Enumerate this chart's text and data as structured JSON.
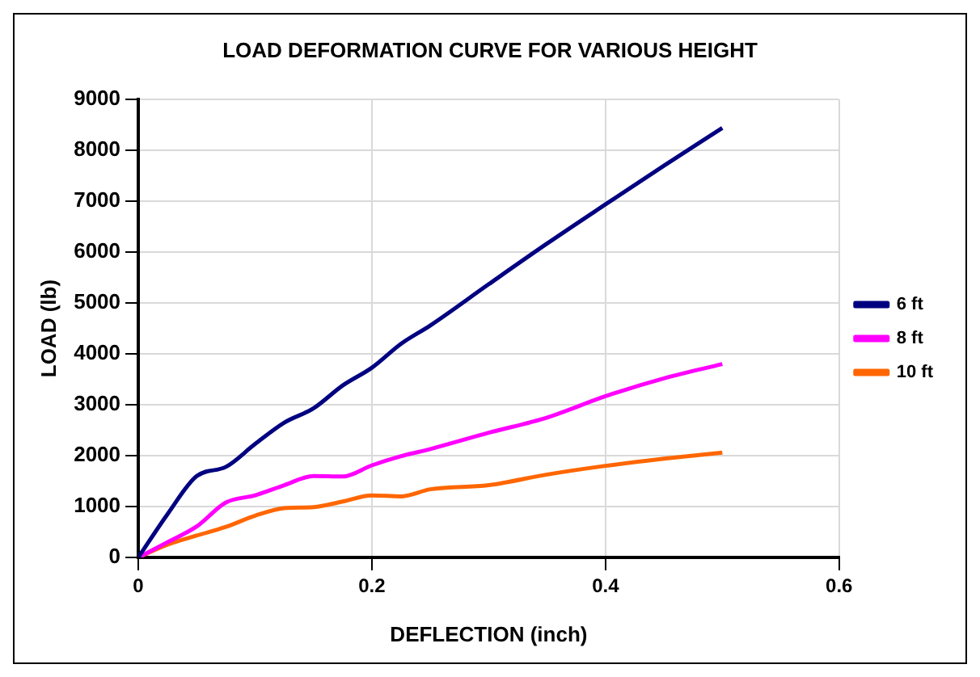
{
  "chart_data": {
    "type": "line",
    "title": "LOAD DEFORMATION CURVE FOR VARIOUS HEIGHT",
    "xlabel": "DEFLECTION (inch)",
    "ylabel": "LOAD (lb)",
    "x": [
      0,
      0.025,
      0.05,
      0.075,
      0.1,
      0.125,
      0.15,
      0.175,
      0.2,
      0.225,
      0.25,
      0.3,
      0.35,
      0.4,
      0.45,
      0.5
    ],
    "series": [
      {
        "name": "6 ft",
        "color": "#000080",
        "values": [
          0,
          850,
          1600,
          1780,
          2230,
          2650,
          2930,
          3380,
          3730,
          4200,
          4560,
          5370,
          6170,
          6940,
          7700,
          8440
        ]
      },
      {
        "name": "8 ft",
        "color": "#ff00ff",
        "values": [
          0,
          300,
          610,
          1080,
          1220,
          1420,
          1600,
          1590,
          1810,
          1990,
          2130,
          2450,
          2750,
          3170,
          3520,
          3800
        ]
      },
      {
        "name": "10 ft",
        "color": "#ff6600",
        "values": [
          0,
          250,
          430,
          600,
          820,
          970,
          990,
          1100,
          1220,
          1200,
          1340,
          1420,
          1630,
          1800,
          1940,
          2060
        ]
      }
    ],
    "xlim": [
      0,
      0.6
    ],
    "xticks": [
      0,
      0.2,
      0.4,
      0.6
    ],
    "ylim": [
      0,
      9000
    ],
    "yticks": [
      0,
      1000,
      2000,
      3000,
      4000,
      5000,
      6000,
      7000,
      8000,
      9000
    ],
    "grid": true,
    "legend": "right",
    "marker": "none",
    "line_style": "solid"
  }
}
